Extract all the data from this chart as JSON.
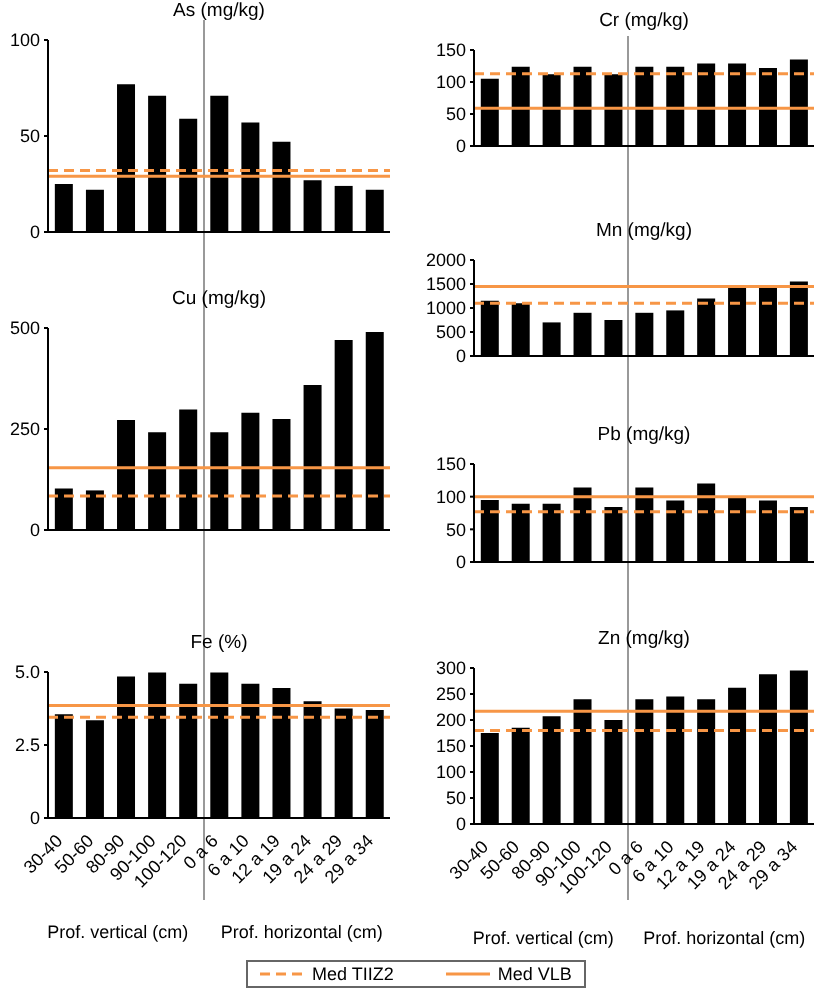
{
  "chart_data": [
    {
      "type": "bar",
      "title": "As (mg/kg)",
      "categories": [
        null,
        null,
        null,
        null,
        null,
        null,
        null,
        null,
        null,
        null,
        null
      ],
      "values": [
        25,
        22,
        77,
        71,
        59,
        71,
        57,
        47,
        27,
        24,
        22
      ],
      "color": "#000000",
      "ylim": [
        0,
        100
      ],
      "yticks": [
        0,
        50,
        100
      ],
      "tick_labels": "y",
      "ref_lines": [
        {
          "axis": "y",
          "value": 32,
          "color": "#f79646",
          "line_style": "dashed"
        },
        {
          "axis": "y",
          "value": 29,
          "color": "#f79646",
          "line_style": "solid"
        }
      ]
    },
    {
      "type": "bar",
      "title": "Cu (mg/kg)",
      "categories": [
        null,
        null,
        null,
        null,
        null,
        null,
        null,
        null,
        null,
        null,
        null
      ],
      "values": [
        103,
        98,
        272,
        242,
        298,
        242,
        290,
        275,
        359,
        470,
        490
      ],
      "color": "#000000",
      "ylim": [
        0,
        500
      ],
      "yticks": [
        0,
        250,
        500
      ],
      "tick_labels": "y",
      "ref_lines": [
        {
          "axis": "y",
          "value": 84,
          "color": "#f79646",
          "line_style": "dashed"
        },
        {
          "axis": "y",
          "value": 154,
          "color": "#f79646",
          "line_style": "solid"
        }
      ]
    },
    {
      "type": "bar",
      "title": "Fe (%)",
      "categories": [
        "30-40",
        "50-60",
        "80-90",
        "90-100",
        "100-120",
        "0 a 6",
        "6 a 10",
        "12 a 19",
        "19 a 24",
        "24 a 29",
        "29 a 34"
      ],
      "values": [
        3.55,
        3.35,
        4.85,
        4.98,
        4.6,
        4.98,
        4.6,
        4.45,
        4.0,
        3.75,
        3.7
      ],
      "color": "#000000",
      "ylim": [
        0,
        5
      ],
      "yticks": [
        0,
        {
          "value": 2.5,
          "label": "2.5"
        },
        {
          "value": 5,
          "label": "5.0"
        }
      ],
      "annotations": [
        "Prof. vertical (cm)",
        "Prof. horizontal (cm)"
      ],
      "ref_lines": [
        {
          "axis": "y",
          "value": 3.45,
          "color": "#f79646",
          "line_style": "dashed"
        },
        {
          "axis": "y",
          "value": 3.85,
          "color": "#f79646",
          "line_style": "solid"
        }
      ]
    },
    {
      "type": "bar",
      "title": "Cr (mg/kg)",
      "categories": [
        null,
        null,
        null,
        null,
        null,
        null,
        null,
        null,
        null,
        null,
        null
      ],
      "values": [
        105,
        124,
        112,
        124,
        112,
        124,
        124,
        129,
        129,
        122,
        135
      ],
      "color": "#000000",
      "ylim": [
        0,
        150
      ],
      "yticks": [
        0,
        50,
        100,
        150
      ],
      "tick_labels": "y",
      "ref_lines": [
        {
          "axis": "y",
          "value": 113,
          "color": "#f79646",
          "line_style": "dashed"
        },
        {
          "axis": "y",
          "value": 59,
          "color": "#f79646",
          "line_style": "solid"
        }
      ]
    },
    {
      "type": "bar",
      "title": "Mn (mg/kg)",
      "categories": [
        null,
        null,
        null,
        null,
        null,
        null,
        null,
        null,
        null,
        null,
        null
      ],
      "values": [
        1150,
        1100,
        700,
        900,
        750,
        900,
        950,
        1200,
        1450,
        1450,
        1550
      ],
      "color": "#000000",
      "ylim": [
        0,
        2000
      ],
      "yticks": [
        0,
        500,
        1000,
        1500,
        2000
      ],
      "tick_labels": "y",
      "ref_lines": [
        {
          "axis": "y",
          "value": 1100,
          "color": "#f79646",
          "line_style": "dashed"
        },
        {
          "axis": "y",
          "value": 1450,
          "color": "#f79646",
          "line_style": "solid"
        }
      ]
    },
    {
      "type": "bar",
      "title": "Pb (mg/kg)",
      "categories": [
        null,
        null,
        null,
        null,
        null,
        null,
        null,
        null,
        null,
        null,
        null
      ],
      "values": [
        95,
        89,
        89,
        114,
        84,
        114,
        94,
        120,
        99,
        94,
        84
      ],
      "color": "#000000",
      "ylim": [
        0,
        150
      ],
      "yticks": [
        0,
        50,
        100,
        150
      ],
      "tick_labels": "y",
      "ref_lines": [
        {
          "axis": "y",
          "value": 77,
          "color": "#f79646",
          "line_style": "dashed"
        },
        {
          "axis": "y",
          "value": 100,
          "color": "#f79646",
          "line_style": "solid"
        }
      ]
    },
    {
      "type": "bar",
      "title": "Zn (mg/kg)",
      "categories": [
        "30-40",
        "50-60",
        "80-90",
        "90-100",
        "100-120",
        "0 a 6",
        "6 a 10",
        "12 a 19",
        "19 a 24",
        "24 a 29",
        "29 a 34"
      ],
      "values": [
        175,
        185,
        207,
        240,
        200,
        240,
        245,
        240,
        262,
        288,
        295
      ],
      "color": "#000000",
      "ylim": [
        0,
        300
      ],
      "yticks": [
        0,
        50,
        100,
        150,
        200,
        250,
        300
      ],
      "legend": "bottom",
      "annotations": [
        "Prof. vertical (cm)",
        "Prof. horizontal (cm)"
      ],
      "ref_lines": [
        {
          "axis": "y",
          "value": 180,
          "label": "Med TIIZ2",
          "color": "#f79646",
          "line_style": "dashed"
        },
        {
          "axis": "y",
          "value": 217,
          "label": "Med VLB",
          "color": "#f79646",
          "line_style": "solid"
        }
      ]
    }
  ]
}
